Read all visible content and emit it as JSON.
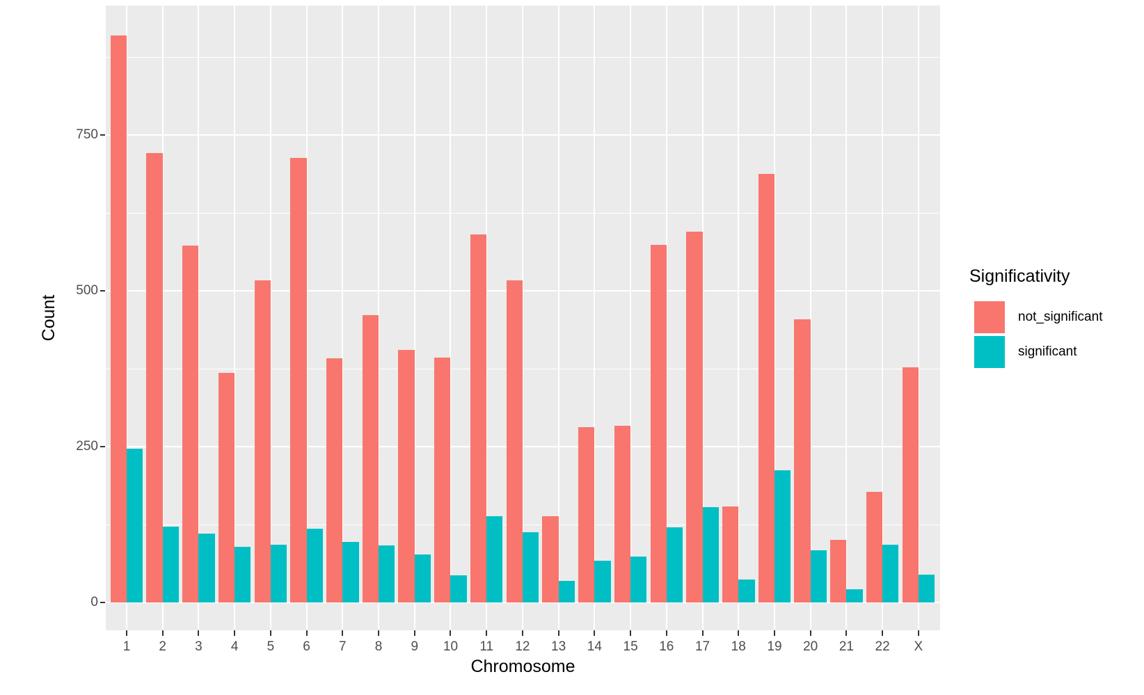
{
  "chart_data": {
    "type": "bar",
    "title": "",
    "xlabel": "Chromosome",
    "ylabel": "Count",
    "categories": [
      "1",
      "2",
      "3",
      "4",
      "5",
      "6",
      "7",
      "8",
      "9",
      "10",
      "11",
      "12",
      "13",
      "14",
      "15",
      "16",
      "17",
      "18",
      "19",
      "20",
      "21",
      "22",
      "X"
    ],
    "series": [
      {
        "name": "not_significant",
        "color": "#F8766D",
        "values": [
          910,
          721,
          572,
          368,
          517,
          713,
          392,
          461,
          405,
          393,
          590,
          517,
          138,
          281,
          284,
          574,
          595,
          154,
          687,
          454,
          100,
          178,
          377
        ]
      },
      {
        "name": "significant",
        "color": "#00BFC4",
        "values": [
          247,
          122,
          110,
          89,
          93,
          118,
          97,
          91,
          77,
          44,
          138,
          113,
          35,
          67,
          74,
          121,
          153,
          37,
          212,
          84,
          21,
          93,
          45
        ]
      }
    ],
    "y_ticks": [
      0,
      250,
      500,
      750
    ],
    "y_minor_gridlines": [
      125,
      375,
      625,
      875
    ],
    "ylim": [
      0,
      955
    ],
    "legend_title": "Significativity",
    "legend_position": "right",
    "grid": "white major+minor horizontal, white major vertical on gray panel",
    "colors": {
      "panel_background": "#EBEBEB",
      "gridline": "#FFFFFF",
      "tick_label": "#4D4D4D",
      "axis_title": "#000000"
    }
  }
}
